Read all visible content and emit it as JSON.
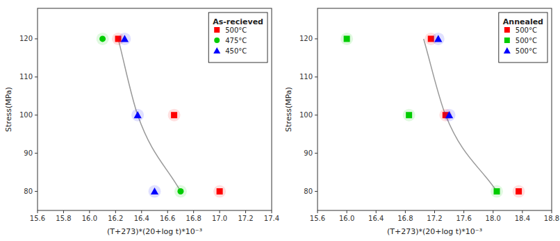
{
  "chart_data": [
    {
      "type": "scatter",
      "title": "As-recieved",
      "x_label": "(T+273)*(20+log t)*10⁻³",
      "y_label": "Stress(MPa)",
      "xlim": [
        15.6,
        17.4
      ],
      "ylim": [
        75,
        128
      ],
      "xticks": [
        15.6,
        15.8,
        {
          "value": 16.0,
          "label": "16.0"
        },
        16.2,
        16.4,
        16.6,
        16.8,
        {
          "value": 17.0,
          "label": "17.0"
        },
        17.2,
        17.4
      ],
      "yticks": [
        80,
        90,
        100,
        110,
        120
      ],
      "grid": false,
      "legend": "upper right",
      "series": [
        {
          "name": "500°C",
          "color": "#ff0000",
          "marker": "square",
          "x": [
            16.22,
            16.65,
            17.0
          ],
          "values": [
            120,
            100,
            80
          ]
        },
        {
          "name": "475°C",
          "color": "#00cc00",
          "marker": "circle",
          "x": [
            16.1,
            16.7
          ],
          "values": [
            120,
            80
          ]
        },
        {
          "name": "450°C",
          "color": "#0000ff",
          "marker": "triangle",
          "x": [
            16.27,
            16.37,
            16.5
          ],
          "values": [
            120,
            100,
            80
          ]
        },
        {
          "type": "line",
          "color": "#999999",
          "x": [
            16.22,
            16.37,
            16.7
          ],
          "values": [
            120,
            100,
            80
          ]
        }
      ]
    },
    {
      "type": "scatter",
      "title": "Annealed",
      "x_label": "(T+273)*(20+log t)*10⁻³",
      "y_label": "Stress(MPa)",
      "xlim": [
        15.6,
        18.8
      ],
      "ylim": [
        75,
        128
      ],
      "xticks": [
        15.6,
        {
          "value": 16.0,
          "label": "16.0"
        },
        16.4,
        16.8,
        17.2,
        17.6,
        {
          "value": 18.0,
          "label": "18.0"
        },
        18.4,
        18.8
      ],
      "yticks": [
        80,
        90,
        100,
        110,
        120
      ],
      "grid": false,
      "legend": "upper right",
      "series": [
        {
          "name": "500°C",
          "color": "#ff0000",
          "marker": "square",
          "x": [
            17.15,
            17.35,
            18.35
          ],
          "values": [
            120,
            100,
            80
          ]
        },
        {
          "name": "500°C",
          "color": "#00cc00",
          "marker": "square",
          "x": [
            16.0,
            16.85,
            18.05
          ],
          "values": [
            120,
            100,
            80
          ]
        },
        {
          "name": "500°C",
          "color": "#0000ff",
          "marker": "triangle",
          "x": [
            17.25,
            17.4
          ],
          "values": [
            120,
            100
          ]
        },
        {
          "type": "line",
          "color": "#999999",
          "x": [
            17.05,
            17.35,
            18.05
          ],
          "values": [
            120,
            100,
            80
          ]
        }
      ]
    }
  ]
}
